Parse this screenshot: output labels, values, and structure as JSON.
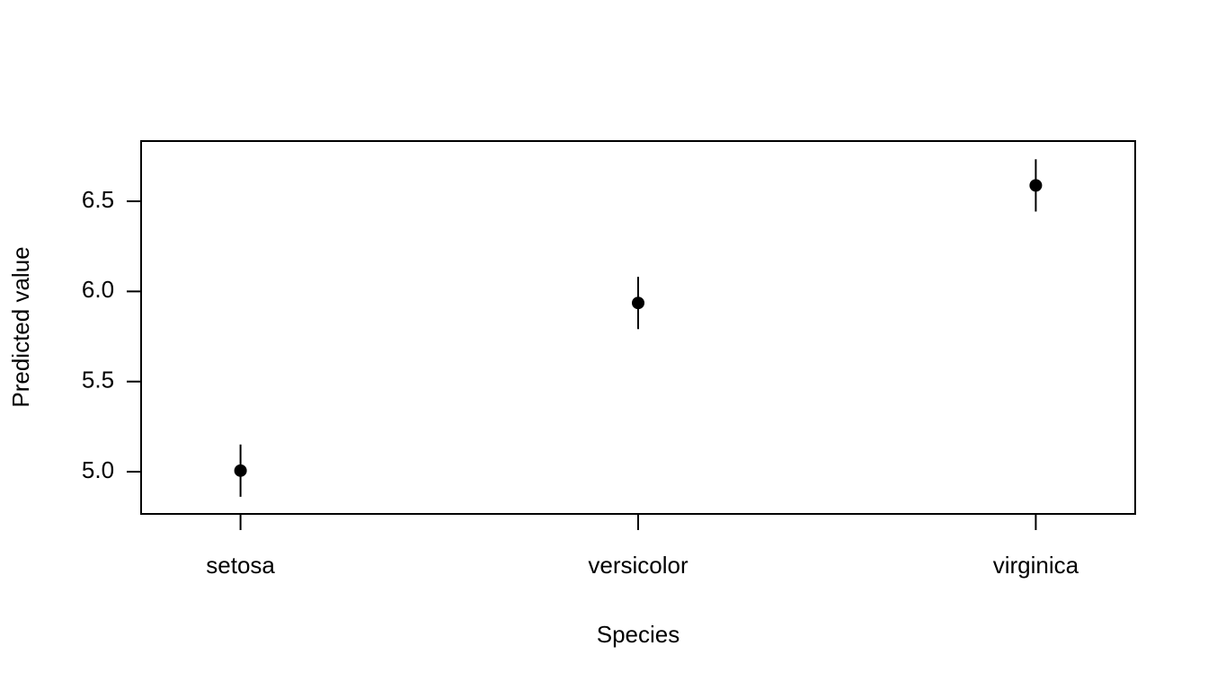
{
  "chart_data": {
    "type": "point",
    "xlabel": "Species",
    "ylabel": "Predicted value",
    "categories": [
      "setosa",
      "versicolor",
      "virginica"
    ],
    "values": [
      5.006,
      5.936,
      6.588
    ],
    "errors": [
      0.145,
      0.145,
      0.145
    ],
    "color": "#000000",
    "ylim": [
      4.766,
      6.834
    ],
    "yticks": [
      {
        "value": 5,
        "label": "5.0"
      },
      5.5,
      {
        "value": 6,
        "label": "6.0"
      },
      6.5
    ],
    "grid": false
  }
}
